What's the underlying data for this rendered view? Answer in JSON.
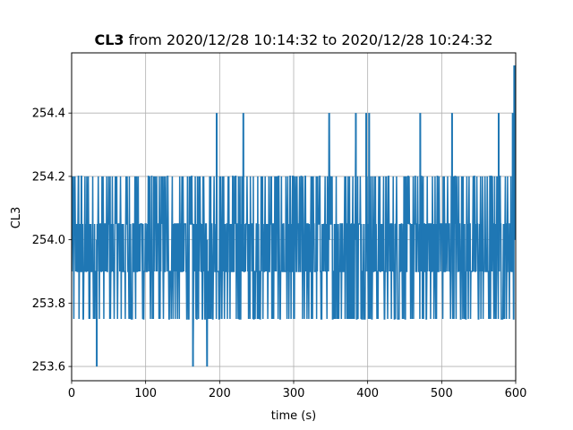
{
  "chart_data": {
    "type": "line",
    "title_bold": "CL3",
    "title_rest": " from 2020/12/28 10:14:32 to 2020/12/28 10:24:32",
    "xlabel": "time (s)",
    "ylabel": "CL3",
    "xlim": [
      0,
      600
    ],
    "ylim": [
      253.555,
      254.59
    ],
    "xticks": [
      0,
      100,
      200,
      300,
      400,
      500,
      600
    ],
    "yticks": [
      253.6,
      253.8,
      254.0,
      254.2,
      254.4
    ],
    "grid": true,
    "line_color": "#1f77b4",
    "series": [
      {
        "band_levels": [
          253.75,
          253.9,
          254.05,
          254.2
        ],
        "spikes": [
          {
            "x": 34,
            "y": 253.6
          },
          {
            "x": 164,
            "y": 253.6
          },
          {
            "x": 183,
            "y": 253.6
          },
          {
            "x": 196,
            "y": 254.4
          },
          {
            "x": 232,
            "y": 254.4
          },
          {
            "x": 348,
            "y": 254.4
          },
          {
            "x": 384,
            "y": 254.4
          },
          {
            "x": 398,
            "y": 254.4
          },
          {
            "x": 402,
            "y": 254.4
          },
          {
            "x": 471,
            "y": 254.4
          },
          {
            "x": 514,
            "y": 254.4
          },
          {
            "x": 577,
            "y": 254.4
          },
          {
            "x": 596,
            "y": 254.4
          },
          {
            "x": 598,
            "y": 254.55
          },
          {
            "x": 599,
            "y": 254.55
          }
        ]
      }
    ]
  }
}
